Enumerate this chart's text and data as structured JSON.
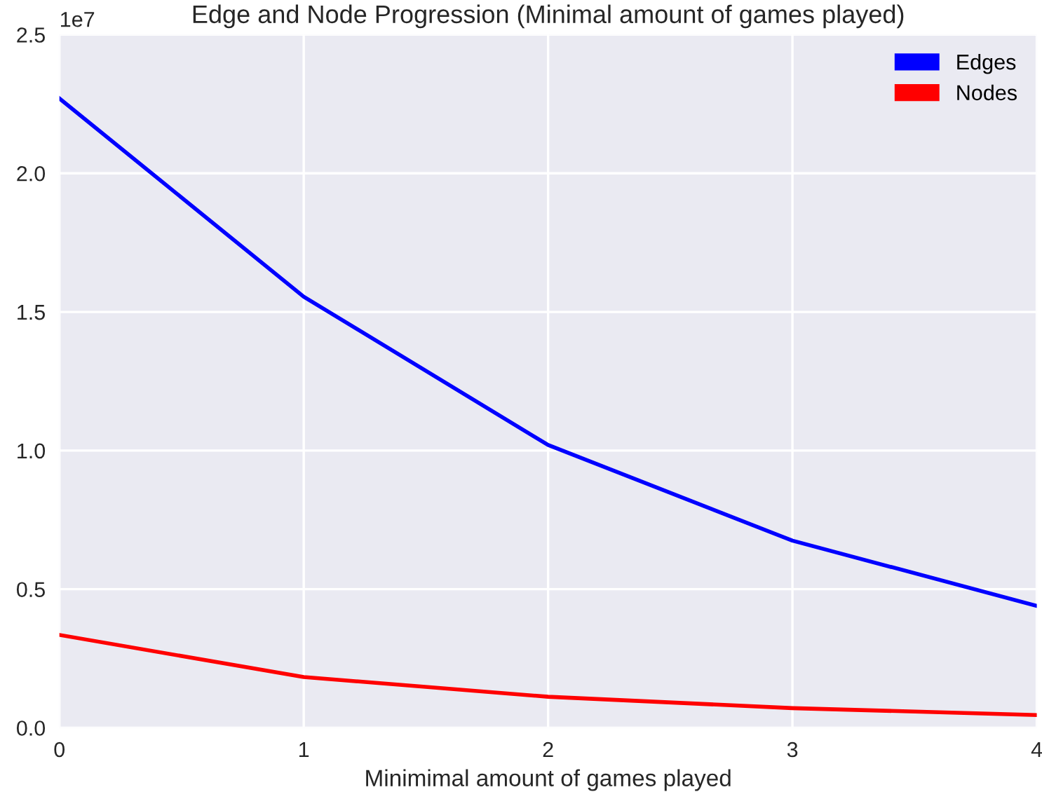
{
  "chart_data": {
    "type": "line",
    "title": "Edge and Node Progression (Minimal amount of games played)",
    "xlabel": "Minimimal amount of games played",
    "x": [
      0,
      1,
      2,
      3,
      4
    ],
    "series": [
      {
        "name": "Edges",
        "color": "#0000ff",
        "values": [
          2.27,
          1.555,
          1.02,
          0.675,
          0.44
        ]
      },
      {
        "name": "Nodes",
        "color": "#ff0000",
        "values": [
          0.335,
          0.183,
          0.112,
          0.071,
          0.046
        ]
      }
    ],
    "xlim": [
      0,
      4
    ],
    "xticks": [
      0,
      1,
      2,
      3,
      4
    ],
    "ylim": [
      0.0,
      2.5
    ],
    "yticks": [
      {
        "value": 0,
        "label": "0.0"
      },
      0.5,
      {
        "value": 1,
        "label": "1.0"
      },
      1.5,
      {
        "value": 2,
        "label": "2.0"
      },
      2.5
    ],
    "annotations": [
      "1e7"
    ],
    "grid": true,
    "legend": "top right",
    "marker": "none",
    "line_style": "solid"
  }
}
